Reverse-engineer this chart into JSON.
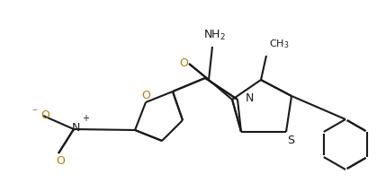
{
  "bg": "#ffffff",
  "lc": "#1a1a1a",
  "lw": 1.5,
  "dbo": 0.06,
  "fs": 9,
  "orange": "#b87800",
  "black": "#1a1a1a",
  "fig_w": 4.19,
  "fig_h": 2.05,
  "dpi": 100,
  "xlim": [
    0,
    419
  ],
  "ylim": [
    0,
    205
  ]
}
